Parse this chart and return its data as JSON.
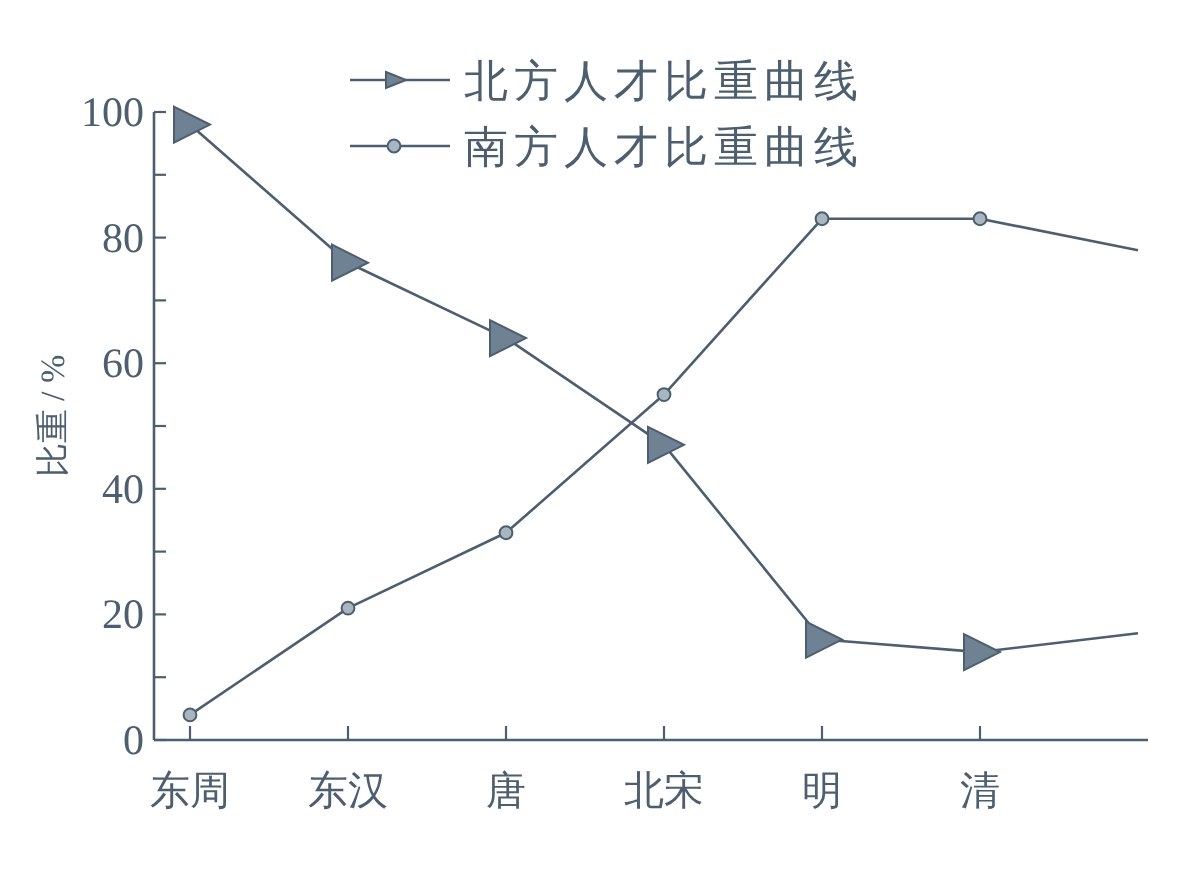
{
  "chart_data": {
    "type": "line",
    "ylabel": "比重 / %",
    "categories": [
      "东周",
      "东汉",
      "唐",
      "北宋",
      "明",
      "清",
      null
    ],
    "ylim": [
      0,
      100
    ],
    "yticks": [
      0,
      {
        "value": 10,
        "label": null
      },
      20,
      {
        "value": 30,
        "label": null
      },
      40,
      {
        "value": 50,
        "label": null
      },
      60,
      {
        "value": 70,
        "label": null
      },
      80,
      {
        "value": 90,
        "label": null
      },
      100
    ],
    "legend": "top",
    "grid": false,
    "series": [
      {
        "name": "北方人才比重曲线",
        "color": "#4d5f6f",
        "marker": "triangle",
        "values": [
          98,
          76,
          64,
          47,
          16,
          14,
          17
        ]
      },
      {
        "name": "南方人才比重曲线",
        "color": "#4d5f6f",
        "marker": "circle",
        "values": [
          4,
          21,
          33,
          55,
          83,
          83,
          78
        ]
      }
    ]
  }
}
